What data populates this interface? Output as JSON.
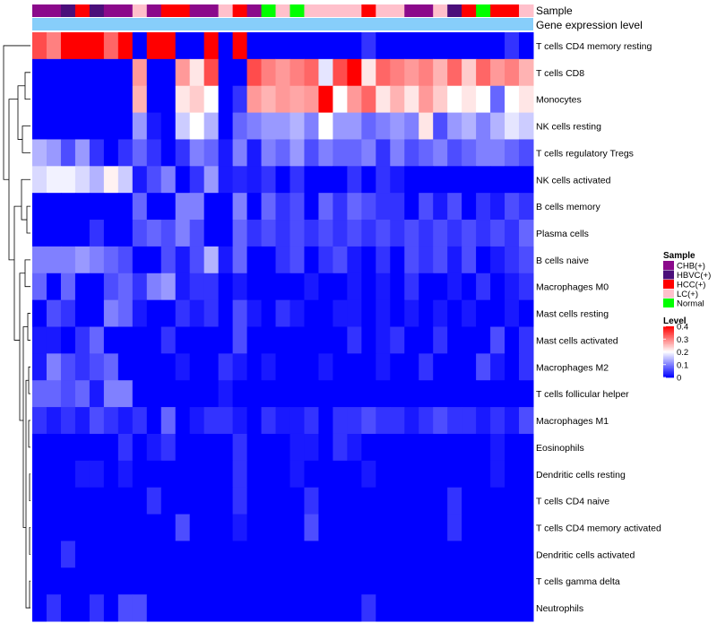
{
  "chart_data": {
    "type": "heatmap",
    "annotation_rows": [
      "Sample",
      "Gene expression level"
    ],
    "row_labels": [
      "T cells CD4 memory resting",
      "T cells CD8",
      "Monocytes",
      "NK cells resting",
      "T cells regulatory  Tregs",
      "NK cells activated",
      "B cells memory",
      "Plasma cells",
      "B cells naive",
      "Macrophages M0",
      "Mast cells resting",
      "Mast cells activated",
      "Macrophages M2",
      "T cells follicular helper",
      "Macrophages M1",
      "Eosinophils",
      "Dendritic cells resting",
      "T cells CD4 naive",
      "T cells CD4 memory activated",
      "Dendritic cells activated",
      "T cells gamma delta",
      "Neutrophils"
    ],
    "sample_groups": [
      "CHB",
      "CHB",
      "HBVC",
      "HCC",
      "HBVC",
      "CHB",
      "CHB",
      "LC",
      "CHB",
      "HCC",
      "HCC",
      "CHB",
      "CHB",
      "LC",
      "HCC",
      "CHB",
      "Normal",
      "LC",
      "Normal",
      "LC",
      "LC",
      "LC",
      "LC",
      "HCC",
      "LC",
      "LC",
      "CHB",
      "CHB",
      "LC",
      "HBVC",
      "HCC",
      "Normal",
      "HCC",
      "HCC",
      "LC"
    ],
    "values": [
      [
        0.34,
        0.3,
        0.4,
        0.4,
        0.4,
        0.32,
        0.4,
        0.0,
        0.4,
        0.4,
        0.0,
        0.0,
        0.4,
        0.0,
        0.4,
        0.0,
        0.0,
        0.0,
        0.0,
        0.0,
        0.0,
        0.0,
        0.0,
        0.04,
        0.0,
        0.0,
        0.0,
        0.0,
        0.0,
        0.0,
        0.0,
        0.0,
        0.0,
        0.04,
        0.0
      ],
      [
        0.0,
        0.0,
        0.0,
        0.0,
        0.0,
        0.0,
        0.0,
        0.28,
        0.0,
        0.0,
        0.28,
        0.22,
        0.34,
        0.0,
        0.0,
        0.34,
        0.3,
        0.28,
        0.3,
        0.32,
        0.18,
        0.34,
        0.4,
        0.22,
        0.32,
        0.3,
        0.28,
        0.3,
        0.26,
        0.32,
        0.24,
        0.32,
        0.28,
        0.3,
        0.26
      ],
      [
        0.0,
        0.0,
        0.0,
        0.0,
        0.0,
        0.0,
        0.0,
        0.26,
        0.0,
        0.0,
        0.22,
        0.24,
        0.2,
        0.0,
        0.04,
        0.28,
        0.26,
        0.28,
        0.27,
        0.28,
        0.4,
        0.2,
        0.28,
        0.32,
        0.22,
        0.26,
        0.22,
        0.28,
        0.24,
        0.2,
        0.22,
        0.2,
        0.08,
        0.2,
        0.22
      ],
      [
        0.0,
        0.0,
        0.0,
        0.0,
        0.0,
        0.0,
        0.0,
        0.12,
        0.02,
        0.0,
        0.16,
        0.2,
        0.14,
        0.0,
        0.08,
        0.1,
        0.12,
        0.12,
        0.14,
        0.1,
        0.2,
        0.12,
        0.12,
        0.08,
        0.1,
        0.12,
        0.1,
        0.22,
        0.06,
        0.12,
        0.14,
        0.1,
        0.14,
        0.18,
        0.16
      ],
      [
        0.14,
        0.12,
        0.06,
        0.12,
        0.04,
        0.0,
        0.04,
        0.08,
        0.04,
        0.0,
        0.04,
        0.1,
        0.08,
        0.02,
        0.1,
        0.02,
        0.1,
        0.08,
        0.12,
        0.06,
        0.1,
        0.08,
        0.08,
        0.1,
        0.04,
        0.1,
        0.06,
        0.08,
        0.1,
        0.06,
        0.08,
        0.1,
        0.1,
        0.08,
        0.06
      ],
      [
        0.17,
        0.19,
        0.19,
        0.17,
        0.14,
        0.21,
        0.16,
        0.02,
        0.06,
        0.1,
        0.0,
        0.04,
        0.12,
        0.02,
        0.03,
        0.02,
        0.04,
        0.0,
        0.04,
        0.0,
        0.0,
        0.0,
        0.04,
        0.0,
        0.04,
        0.02,
        0.0,
        0.0,
        0.0,
        0.0,
        0.0,
        0.0,
        0.0,
        0.0,
        0.0
      ],
      [
        0.0,
        0.0,
        0.0,
        0.0,
        0.0,
        0.0,
        0.0,
        0.08,
        0.0,
        0.0,
        0.1,
        0.1,
        0.0,
        0.0,
        0.1,
        0.0,
        0.08,
        0.04,
        0.06,
        0.0,
        0.08,
        0.04,
        0.08,
        0.06,
        0.04,
        0.04,
        0.0,
        0.06,
        0.02,
        0.06,
        0.0,
        0.04,
        0.02,
        0.06,
        0.04
      ],
      [
        0.0,
        0.0,
        0.0,
        0.0,
        0.04,
        0.0,
        0.0,
        0.06,
        0.08,
        0.06,
        0.1,
        0.06,
        0.0,
        0.0,
        0.08,
        0.04,
        0.06,
        0.04,
        0.06,
        0.04,
        0.06,
        0.04,
        0.06,
        0.04,
        0.06,
        0.04,
        0.06,
        0.04,
        0.06,
        0.04,
        0.06,
        0.04,
        0.06,
        0.04,
        0.08
      ],
      [
        0.1,
        0.1,
        0.1,
        0.12,
        0.1,
        0.08,
        0.06,
        0.0,
        0.0,
        0.06,
        0.02,
        0.06,
        0.14,
        0.02,
        0.08,
        0.0,
        0.0,
        0.04,
        0.06,
        0.0,
        0.04,
        0.06,
        0.02,
        0.0,
        0.04,
        0.0,
        0.06,
        0.04,
        0.06,
        0.02,
        0.06,
        0.0,
        0.02,
        0.04,
        0.06
      ],
      [
        0.08,
        0.0,
        0.08,
        0.0,
        0.0,
        0.06,
        0.08,
        0.04,
        0.1,
        0.12,
        0.02,
        0.04,
        0.04,
        0.0,
        0.02,
        0.0,
        0.0,
        0.0,
        0.0,
        0.02,
        0.0,
        0.0,
        0.02,
        0.0,
        0.02,
        0.0,
        0.04,
        0.0,
        0.0,
        0.02,
        0.0,
        0.04,
        0.0,
        0.02,
        0.04
      ],
      [
        0.0,
        0.06,
        0.04,
        0.0,
        0.0,
        0.1,
        0.08,
        0.02,
        0.0,
        0.0,
        0.04,
        0.02,
        0.04,
        0.0,
        0.06,
        0.02,
        0.0,
        0.04,
        0.02,
        0.0,
        0.0,
        0.02,
        0.02,
        0.0,
        0.02,
        0.0,
        0.02,
        0.0,
        0.02,
        0.0,
        0.02,
        0.0,
        0.0,
        0.02,
        0.0
      ],
      [
        0.02,
        0.02,
        0.0,
        0.04,
        0.08,
        0.0,
        0.0,
        0.0,
        0.0,
        0.04,
        0.0,
        0.0,
        0.0,
        0.0,
        0.06,
        0.0,
        0.0,
        0.0,
        0.0,
        0.0,
        0.0,
        0.0,
        0.04,
        0.0,
        0.02,
        0.04,
        0.0,
        0.0,
        0.04,
        0.0,
        0.0,
        0.0,
        0.06,
        0.0,
        0.04
      ],
      [
        0.02,
        0.1,
        0.06,
        0.04,
        0.06,
        0.08,
        0.0,
        0.0,
        0.0,
        0.0,
        0.02,
        0.0,
        0.0,
        0.04,
        0.02,
        0.0,
        0.02,
        0.0,
        0.0,
        0.0,
        0.02,
        0.0,
        0.0,
        0.0,
        0.02,
        0.0,
        0.0,
        0.04,
        0.0,
        0.0,
        0.0,
        0.06,
        0.02,
        0.0,
        0.04
      ],
      [
        0.08,
        0.08,
        0.06,
        0.08,
        0.02,
        0.1,
        0.1,
        0.0,
        0.0,
        0.0,
        0.0,
        0.0,
        0.0,
        0.02,
        0.0,
        0.0,
        0.0,
        0.0,
        0.0,
        0.0,
        0.0,
        0.0,
        0.0,
        0.0,
        0.0,
        0.0,
        0.0,
        0.0,
        0.0,
        0.0,
        0.0,
        0.0,
        0.0,
        0.0,
        0.0
      ],
      [
        0.04,
        0.02,
        0.04,
        0.02,
        0.06,
        0.04,
        0.02,
        0.04,
        0.0,
        0.08,
        0.0,
        0.02,
        0.04,
        0.04,
        0.02,
        0.0,
        0.04,
        0.02,
        0.02,
        0.04,
        0.0,
        0.04,
        0.04,
        0.06,
        0.04,
        0.04,
        0.02,
        0.04,
        0.06,
        0.04,
        0.04,
        0.02,
        0.04,
        0.02,
        0.06
      ],
      [
        0.0,
        0.0,
        0.0,
        0.0,
        0.0,
        0.0,
        0.04,
        0.0,
        0.02,
        0.04,
        0.0,
        0.0,
        0.0,
        0.0,
        0.04,
        0.0,
        0.0,
        0.0,
        0.02,
        0.02,
        0.0,
        0.04,
        0.02,
        0.0,
        0.0,
        0.0,
        0.0,
        0.0,
        0.0,
        0.0,
        0.0,
        0.0,
        0.02,
        0.0,
        0.0
      ],
      [
        0.0,
        0.0,
        0.0,
        0.02,
        0.02,
        0.0,
        0.02,
        0.0,
        0.0,
        0.0,
        0.0,
        0.0,
        0.0,
        0.0,
        0.04,
        0.0,
        0.0,
        0.0,
        0.02,
        0.0,
        0.0,
        0.0,
        0.0,
        0.02,
        0.0,
        0.0,
        0.0,
        0.0,
        0.0,
        0.0,
        0.0,
        0.0,
        0.02,
        0.0,
        0.0
      ],
      [
        0.0,
        0.0,
        0.0,
        0.0,
        0.0,
        0.0,
        0.0,
        0.0,
        0.04,
        0.0,
        0.0,
        0.0,
        0.0,
        0.0,
        0.04,
        0.0,
        0.0,
        0.0,
        0.0,
        0.04,
        0.0,
        0.0,
        0.0,
        0.0,
        0.0,
        0.0,
        0.0,
        0.0,
        0.0,
        0.04,
        0.0,
        0.0,
        0.0,
        0.0,
        0.0
      ],
      [
        0.0,
        0.0,
        0.0,
        0.0,
        0.0,
        0.0,
        0.0,
        0.0,
        0.0,
        0.0,
        0.06,
        0.0,
        0.0,
        0.0,
        0.02,
        0.0,
        0.0,
        0.0,
        0.0,
        0.06,
        0.0,
        0.0,
        0.0,
        0.0,
        0.0,
        0.0,
        0.0,
        0.0,
        0.0,
        0.04,
        0.0,
        0.0,
        0.0,
        0.0,
        0.0
      ],
      [
        0.0,
        0.0,
        0.04,
        0.0,
        0.0,
        0.0,
        0.0,
        0.0,
        0.0,
        0.0,
        0.0,
        0.0,
        0.0,
        0.0,
        0.0,
        0.0,
        0.0,
        0.0,
        0.0,
        0.0,
        0.0,
        0.0,
        0.0,
        0.0,
        0.0,
        0.0,
        0.0,
        0.0,
        0.0,
        0.0,
        0.0,
        0.0,
        0.0,
        0.0,
        0.0
      ],
      [
        0.0,
        0.0,
        0.0,
        0.0,
        0.0,
        0.0,
        0.0,
        0.0,
        0.0,
        0.0,
        0.0,
        0.0,
        0.0,
        0.0,
        0.0,
        0.0,
        0.0,
        0.0,
        0.0,
        0.0,
        0.0,
        0.0,
        0.0,
        0.0,
        0.0,
        0.0,
        0.0,
        0.0,
        0.0,
        0.0,
        0.0,
        0.0,
        0.0,
        0.0,
        0.0
      ],
      [
        0.0,
        0.04,
        0.0,
        0.0,
        0.04,
        0.0,
        0.06,
        0.06,
        0.0,
        0.0,
        0.0,
        0.0,
        0.0,
        0.0,
        0.0,
        0.0,
        0.0,
        0.0,
        0.0,
        0.0,
        0.0,
        0.0,
        0.0,
        0.04,
        0.0,
        0.0,
        0.0,
        0.0,
        0.0,
        0.0,
        0.0,
        0.0,
        0.0,
        0.0,
        0.0
      ]
    ],
    "legend": {
      "sample": {
        "title": "Sample",
        "entries": [
          {
            "key": "CHB",
            "label": "CHB(+)",
            "color": "#8b0a8b"
          },
          {
            "key": "HBVC",
            "label": "HBVC(+)",
            "color": "#4b0f7a"
          },
          {
            "key": "HCC",
            "label": "HCC(+)",
            "color": "#ff0000"
          },
          {
            "key": "LC",
            "label": "LC(+)",
            "color": "#ffc0cb"
          },
          {
            "key": "Normal",
            "label": "Normal",
            "color": "#00ff00"
          }
        ]
      },
      "level": {
        "title": "Level",
        "ticks": [
          "0.4",
          "0.3",
          "0.2",
          "0.1",
          "0"
        ],
        "tick_values": [
          0.4,
          0.3,
          0.2,
          0.1,
          0.0
        ],
        "range": [
          0,
          0.4
        ]
      }
    },
    "colors": {
      "low": "#0000ff",
      "mid": "#ffffff",
      "high": "#ff0000",
      "expression_bar": "#87cefa"
    }
  }
}
